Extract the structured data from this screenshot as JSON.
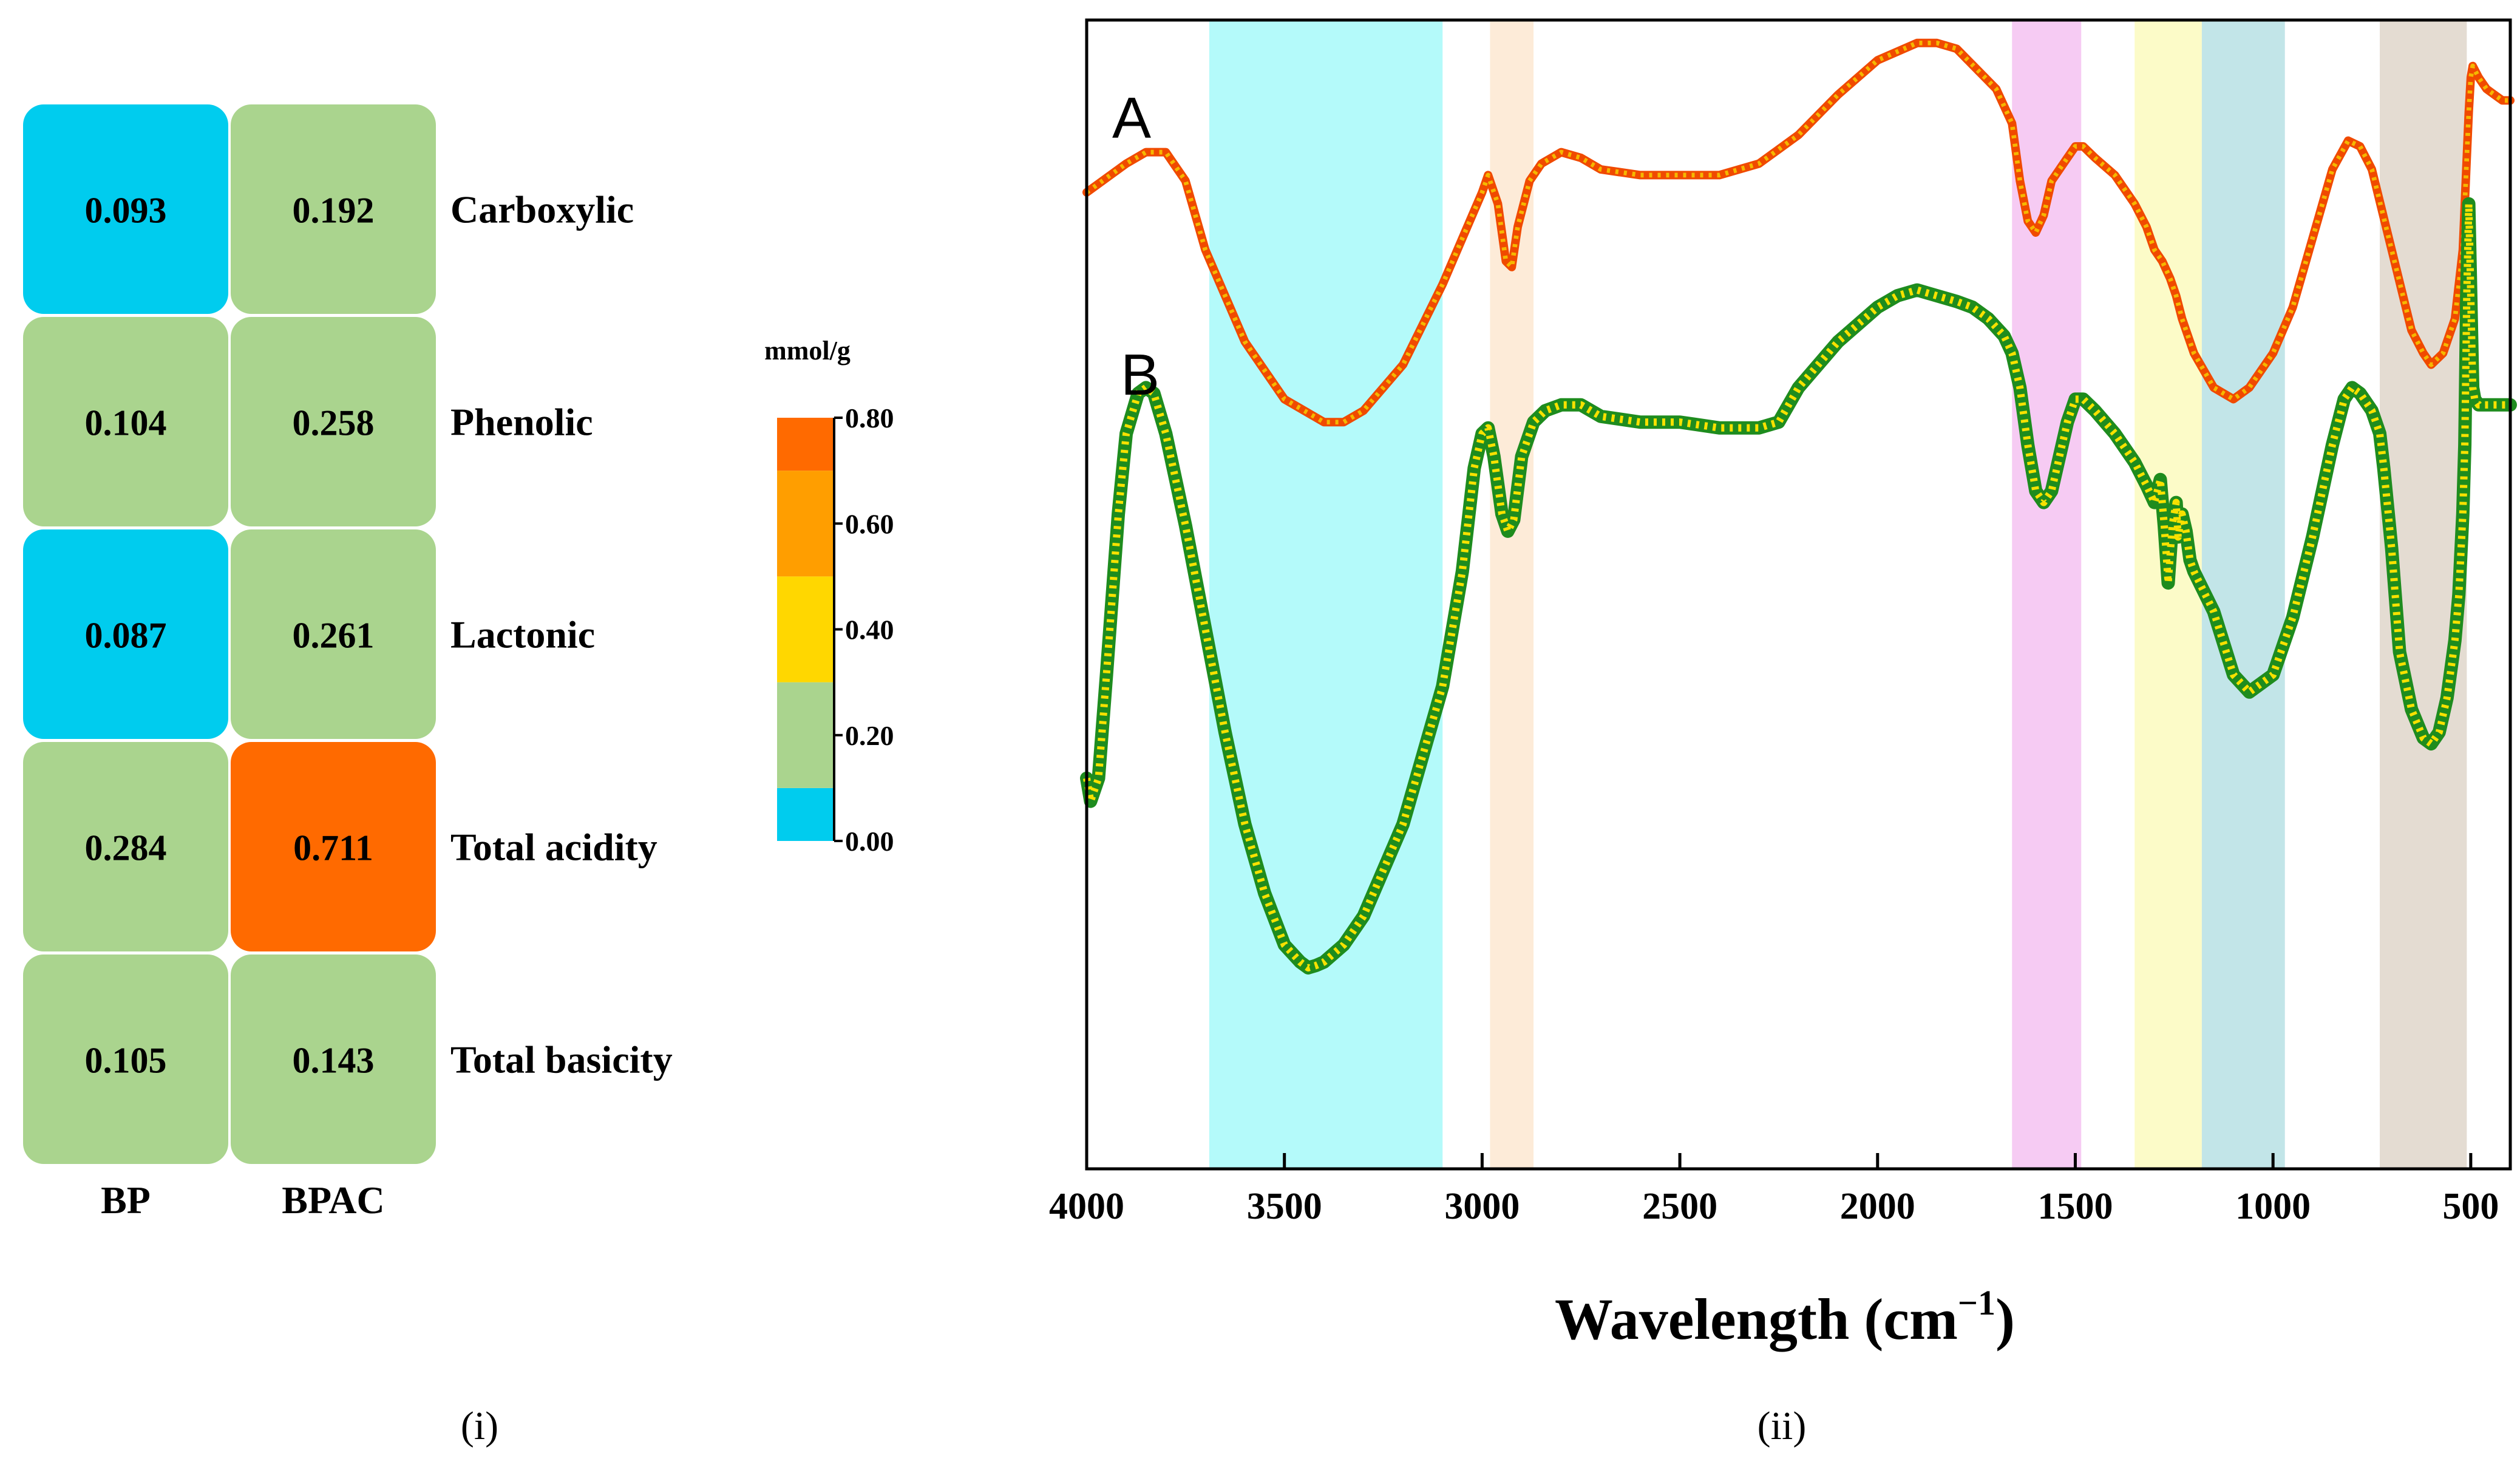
{
  "chart_data": [
    {
      "type": "heatmap",
      "panel_label": "(i)",
      "columns": [
        "BP",
        "BPAC"
      ],
      "rows": [
        "Carboxylic",
        "Phenolic",
        "Lactonic",
        "Total acidity",
        "Total basicity"
      ],
      "values": [
        [
          0.093,
          0.192
        ],
        [
          0.104,
          0.258
        ],
        [
          0.087,
          0.261
        ],
        [
          0.284,
          0.711
        ],
        [
          0.105,
          0.143
        ]
      ],
      "value_labels": [
        [
          "0.093",
          "0.192"
        ],
        [
          "0.104",
          "0.258"
        ],
        [
          "0.087",
          "0.261"
        ],
        [
          "0.284",
          "0.711"
        ],
        [
          "0.105",
          "0.143"
        ]
      ],
      "colorbar": {
        "title": "mmol/g",
        "range": [
          0,
          0.8
        ],
        "ticks": [
          "0.00",
          "0.20",
          "0.40",
          "0.60",
          "0.80"
        ],
        "bands": [
          {
            "from": 0.0,
            "to": 0.1,
            "color": "#00CCEE"
          },
          {
            "from": 0.1,
            "to": 0.3,
            "color": "#AAD48E"
          },
          {
            "from": 0.3,
            "to": 0.5,
            "color": "#FFD700"
          },
          {
            "from": 0.5,
            "to": 0.7,
            "color": "#FF9E00"
          },
          {
            "from": 0.7,
            "to": 0.8,
            "color": "#FF6A00"
          }
        ]
      }
    },
    {
      "type": "line",
      "panel_label": "(ii)",
      "xlabel": "Wavelength (cm",
      "xlabel_sup": "−1",
      "xlabel_close": ")",
      "xlim": [
        4000,
        400
      ],
      "xticks": [
        4000,
        3500,
        3000,
        2500,
        2000,
        1500,
        1000,
        500
      ],
      "xtick_labels": [
        "4000",
        "3500",
        "3000",
        "2500",
        "2000",
        "1500",
        "1000",
        "500"
      ],
      "ylim": [
        0,
        100
      ],
      "shaded_regions": [
        {
          "from": 3690,
          "to": 3100,
          "color": "#B4FAFA"
        },
        {
          "from": 2980,
          "to": 2870,
          "color": "#FDEBD8"
        },
        {
          "from": 1660,
          "to": 1485,
          "color": "#F6CBF3"
        },
        {
          "from": 1350,
          "to": 1180,
          "color": "#FCFBC8"
        },
        {
          "from": 1180,
          "to": 970,
          "color": "#C2E5E8"
        },
        {
          "from": 730,
          "to": 510,
          "color": "#E4DCD2"
        }
      ],
      "series": [
        {
          "name": "A",
          "color": "#F04A00",
          "accent": "#F5B800",
          "x": [
            4000,
            3900,
            3850,
            3800,
            3750,
            3700,
            3600,
            3500,
            3400,
            3350,
            3300,
            3200,
            3100,
            3050,
            3000,
            2985,
            2960,
            2940,
            2925,
            2910,
            2880,
            2850,
            2800,
            2750,
            2700,
            2600,
            2500,
            2400,
            2300,
            2200,
            2100,
            2000,
            1900,
            1850,
            1800,
            1700,
            1660,
            1640,
            1620,
            1600,
            1580,
            1560,
            1520,
            1500,
            1480,
            1450,
            1400,
            1350,
            1320,
            1300,
            1280,
            1260,
            1245,
            1230,
            1200,
            1150,
            1100,
            1060,
            1000,
            950,
            900,
            850,
            810,
            780,
            750,
            700,
            650,
            620,
            600,
            570,
            540,
            520,
            510,
            505,
            500,
            495,
            480,
            460,
            440,
            420,
            400
          ],
          "y": [
            85,
            87.5,
            88.5,
            88.5,
            86,
            80,
            72,
            67,
            65,
            65,
            66,
            70,
            77,
            81,
            85,
            86.5,
            84,
            79,
            78.5,
            82,
            86,
            87.5,
            88.5,
            88,
            87,
            86.5,
            86.5,
            86.5,
            87.5,
            90,
            93.5,
            96.5,
            98,
            98,
            97.5,
            94,
            91,
            86,
            82.5,
            81.5,
            83,
            86,
            88,
            89,
            89,
            88,
            86.5,
            84,
            82,
            80,
            79,
            77.5,
            76,
            74,
            71,
            68,
            67,
            68,
            71,
            75,
            81,
            87,
            89.5,
            89,
            87,
            80,
            73,
            71,
            70,
            71,
            74,
            80,
            88,
            92,
            95,
            96,
            95,
            94,
            93.5,
            93,
            93
          ]
        },
        {
          "name": "B",
          "color": "#1E8C1E",
          "accent": "#F7E100",
          "x": [
            4000,
            3990,
            3970,
            3950,
            3920,
            3900,
            3870,
            3850,
            3830,
            3800,
            3750,
            3700,
            3650,
            3600,
            3550,
            3500,
            3460,
            3440,
            3420,
            3400,
            3350,
            3300,
            3200,
            3100,
            3050,
            3020,
            3000,
            2985,
            2970,
            2950,
            2935,
            2920,
            2900,
            2870,
            2840,
            2800,
            2750,
            2700,
            2600,
            2500,
            2400,
            2300,
            2250,
            2200,
            2100,
            2000,
            1950,
            1900,
            1850,
            1800,
            1760,
            1720,
            1680,
            1660,
            1640,
            1620,
            1600,
            1580,
            1560,
            1540,
            1520,
            1500,
            1480,
            1450,
            1400,
            1350,
            1320,
            1300,
            1285,
            1275,
            1265,
            1255,
            1245,
            1240,
            1230,
            1220,
            1210,
            1200,
            1150,
            1100,
            1060,
            1000,
            950,
            900,
            850,
            820,
            800,
            780,
            750,
            730,
            720,
            700,
            680,
            650,
            620,
            600,
            580,
            560,
            540,
            530,
            520,
            515,
            510,
            505,
            500,
            495,
            490,
            480,
            460,
            440,
            420,
            400
          ],
          "y": [
            34,
            32,
            34,
            43,
            57,
            64,
            67.5,
            68,
            67.5,
            64,
            56,
            47,
            38,
            30,
            24,
            19.5,
            18,
            17.5,
            17.7,
            18,
            19.5,
            22,
            30,
            42,
            52,
            61,
            64,
            64.5,
            62,
            57,
            55.5,
            56.5,
            62,
            65,
            66,
            66.5,
            66.5,
            65.5,
            65,
            65,
            64.5,
            64.5,
            65,
            68,
            72,
            75,
            76,
            76.5,
            76,
            75.5,
            75,
            74,
            72.5,
            71,
            68,
            63,
            59,
            58,
            59,
            62,
            65,
            67,
            67,
            66,
            64,
            61.5,
            59.5,
            58,
            60,
            56,
            51,
            56,
            58,
            55,
            57,
            55.5,
            53,
            52,
            48.5,
            43,
            41.5,
            43,
            48,
            55,
            63,
            67,
            68,
            67.5,
            66,
            64,
            61,
            54,
            45,
            40,
            37.5,
            37,
            38,
            41,
            46,
            50,
            57,
            63,
            76,
            84,
            76,
            68,
            67,
            66.5,
            66.5,
            66.5,
            66.5,
            66.5
          ]
        }
      ]
    }
  ]
}
